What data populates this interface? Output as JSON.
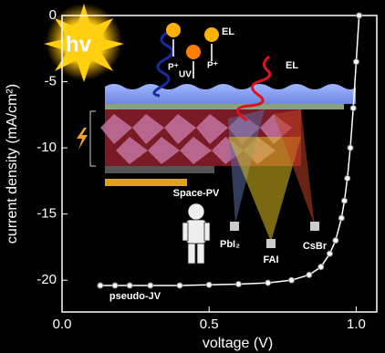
{
  "chart_data": {
    "type": "line",
    "x_label": "voltage (V)",
    "y_label": "current density (mA/cm²)",
    "x": [
      0.13,
      0.18,
      0.23,
      0.3,
      0.4,
      0.5,
      0.6,
      0.7,
      0.78,
      0.84,
      0.88,
      0.91,
      0.93,
      0.95,
      0.96,
      0.97,
      0.98,
      0.99,
      1.0,
      1.01
    ],
    "series": [
      {
        "name": "pseudo-JV",
        "color": "#ffffff",
        "values": [
          -20.4,
          -20.4,
          -20.4,
          -20.4,
          -20.4,
          -20.35,
          -20.3,
          -20.2,
          -20.0,
          -19.6,
          -19.0,
          -18.0,
          -17.0,
          -15.3,
          -14.0,
          -12.3,
          -10.0,
          -7.0,
          -3.5,
          0
        ]
      }
    ],
    "annotations": [
      "hv",
      "UV",
      "EL",
      "EL",
      "P⁺",
      "P⁺",
      "Space-PV",
      "PbI₂",
      "FAI",
      "CsBr"
    ],
    "xlim": [
      0,
      1.07
    ],
    "ylim": [
      -22.4,
      0
    ],
    "xticks": [
      {
        "value": 0,
        "label": "0.0"
      },
      0.5,
      {
        "value": 1,
        "label": "1.0"
      }
    ],
    "yticks": [
      0,
      -5,
      -10,
      -15,
      -20
    ]
  }
}
